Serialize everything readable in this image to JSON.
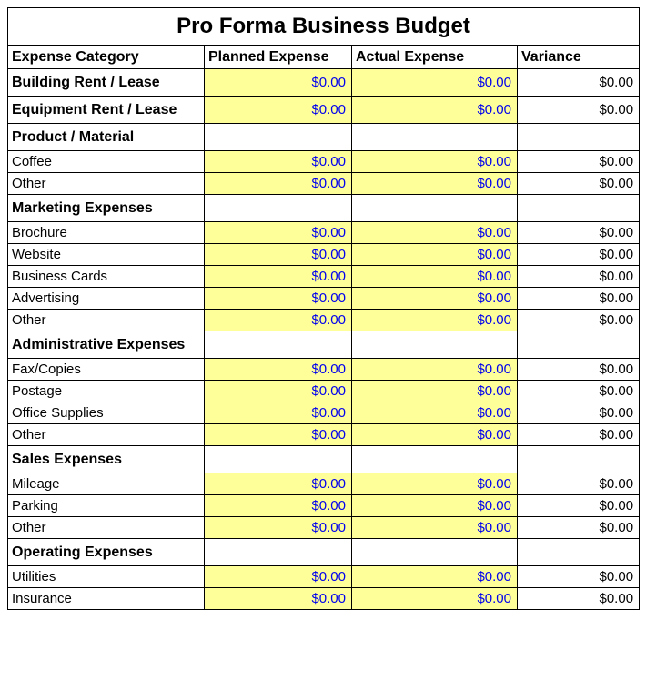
{
  "title": "Pro Forma Business Budget",
  "headers": {
    "category": "Expense Category",
    "planned": "Planned Expense",
    "actual": "Actual Expense",
    "variance": "Variance"
  },
  "colors": {
    "input_bg": "#ffff99",
    "input_text": "#0000ee",
    "border": "#000000",
    "page_bg": "#ffffff"
  },
  "rows": [
    {
      "type": "section-money",
      "label": "Building Rent / Lease",
      "planned": "$0.00",
      "actual": "$0.00",
      "variance": "$0.00"
    },
    {
      "type": "section-money",
      "label": "Equipment Rent / Lease",
      "planned": "$0.00",
      "actual": "$0.00",
      "variance": "$0.00"
    },
    {
      "type": "section",
      "label": "Product / Material"
    },
    {
      "type": "item",
      "label": "Coffee",
      "planned": "$0.00",
      "actual": "$0.00",
      "variance": "$0.00"
    },
    {
      "type": "item",
      "label": "Other",
      "planned": "$0.00",
      "actual": "$0.00",
      "variance": "$0.00"
    },
    {
      "type": "section",
      "label": "Marketing Expenses"
    },
    {
      "type": "item",
      "label": "Brochure",
      "planned": "$0.00",
      "actual": "$0.00",
      "variance": "$0.00"
    },
    {
      "type": "item",
      "label": "Website",
      "planned": "$0.00",
      "actual": "$0.00",
      "variance": "$0.00"
    },
    {
      "type": "item",
      "label": "Business Cards",
      "planned": "$0.00",
      "actual": "$0.00",
      "variance": "$0.00"
    },
    {
      "type": "item",
      "label": "Advertising",
      "planned": "$0.00",
      "actual": "$0.00",
      "variance": "$0.00"
    },
    {
      "type": "item",
      "label": "Other",
      "planned": "$0.00",
      "actual": "$0.00",
      "variance": "$0.00"
    },
    {
      "type": "section",
      "label": "Administrative Expenses"
    },
    {
      "type": "item",
      "label": "Fax/Copies",
      "planned": "$0.00",
      "actual": "$0.00",
      "variance": "$0.00"
    },
    {
      "type": "item",
      "label": "Postage",
      "planned": "$0.00",
      "actual": "$0.00",
      "variance": "$0.00"
    },
    {
      "type": "item",
      "label": "Office Supplies",
      "planned": "$0.00",
      "actual": "$0.00",
      "variance": "$0.00"
    },
    {
      "type": "item",
      "label": "Other",
      "planned": "$0.00",
      "actual": "$0.00",
      "variance": "$0.00"
    },
    {
      "type": "section",
      "label": "Sales Expenses"
    },
    {
      "type": "item",
      "label": "Mileage",
      "planned": "$0.00",
      "actual": "$0.00",
      "variance": "$0.00"
    },
    {
      "type": "item",
      "label": "Parking",
      "planned": "$0.00",
      "actual": "$0.00",
      "variance": "$0.00"
    },
    {
      "type": "item",
      "label": "Other",
      "planned": "$0.00",
      "actual": "$0.00",
      "variance": "$0.00"
    },
    {
      "type": "section",
      "label": "Operating Expenses"
    },
    {
      "type": "item",
      "label": "Utilities",
      "planned": "$0.00",
      "actual": "$0.00",
      "variance": "$0.00"
    },
    {
      "type": "item",
      "label": "Insurance",
      "planned": "$0.00",
      "actual": "$0.00",
      "variance": "$0.00"
    }
  ]
}
